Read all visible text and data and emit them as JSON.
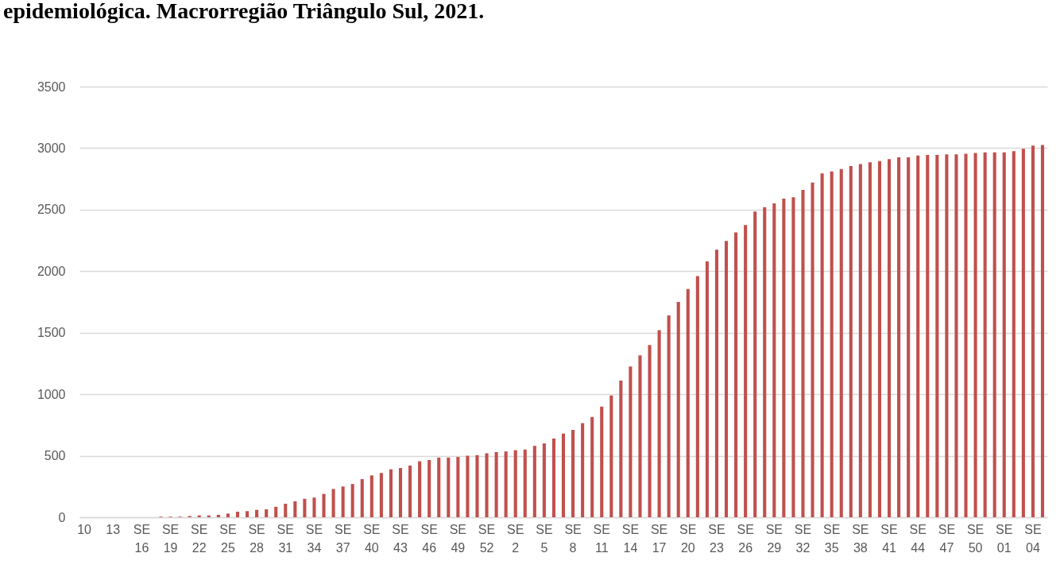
{
  "chart_data": {
    "type": "bar",
    "title": "epidemiológica. Macrorregião Triângulo Sul, 2021.",
    "categories": [
      "10",
      null,
      null,
      "13",
      null,
      null,
      "SE 16",
      null,
      null,
      "SE 19",
      null,
      null,
      "SE 22",
      null,
      null,
      "SE 25",
      null,
      null,
      "SE 28",
      null,
      null,
      "SE 31",
      null,
      null,
      "SE 34",
      null,
      null,
      "SE 37",
      null,
      null,
      "SE 40",
      null,
      null,
      "SE 43",
      null,
      null,
      "SE 46",
      null,
      null,
      "SE 49",
      null,
      null,
      "SE 52",
      null,
      null,
      "SE 2",
      null,
      null,
      "SE 5",
      null,
      null,
      "SE 8",
      null,
      null,
      "SE 11",
      null,
      null,
      "SE 14",
      null,
      null,
      "SE 17",
      null,
      null,
      "SE 20",
      null,
      null,
      "SE 23",
      null,
      null,
      "SE 26",
      null,
      null,
      "SE 29",
      null,
      null,
      "SE 32",
      null,
      null,
      "SE 35",
      null,
      null,
      "SE 38",
      null,
      null,
      "SE 41",
      null,
      null,
      "SE 44",
      null,
      null,
      "SE 47",
      null,
      null,
      "SE 50",
      null,
      null,
      "SE 01",
      null,
      null,
      "SE 04",
      null
    ],
    "values": [
      0,
      0,
      0,
      0,
      0,
      0,
      0,
      0,
      5,
      5,
      5,
      10,
      15,
      15,
      20,
      30,
      45,
      50,
      60,
      65,
      85,
      110,
      130,
      150,
      160,
      190,
      230,
      250,
      270,
      310,
      340,
      360,
      390,
      400,
      420,
      455,
      465,
      485,
      485,
      490,
      500,
      505,
      520,
      530,
      535,
      545,
      550,
      580,
      600,
      640,
      680,
      710,
      765,
      815,
      900,
      990,
      1110,
      1225,
      1315,
      1400,
      1520,
      1640,
      1750,
      1855,
      1960,
      2080,
      2175,
      2245,
      2315,
      2375,
      2485,
      2520,
      2550,
      2590,
      2600,
      2660,
      2720,
      2795,
      2810,
      2830,
      2855,
      2870,
      2885,
      2895,
      2910,
      2925,
      2925,
      2940,
      2945,
      2945,
      2950,
      2950,
      2955,
      2960,
      2965,
      2965,
      2965,
      2975,
      2995,
      3020,
      3025
    ],
    "color": "#c0504d",
    "ylim": [
      0,
      3500
    ],
    "yticks": [
      0,
      500,
      1000,
      1500,
      2000,
      2500,
      3000,
      3500
    ],
    "grid": "y"
  }
}
